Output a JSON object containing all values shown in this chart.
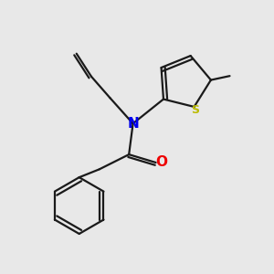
{
  "background_color": "#e8e8e8",
  "bond_color": "#1a1a1a",
  "N_color": "#0000ee",
  "O_color": "#ee0000",
  "S_color": "#bbbb00",
  "line_width": 1.6,
  "figsize": [
    3.0,
    3.0
  ],
  "dpi": 100,
  "xlim": [
    0,
    10
  ],
  "ylim": [
    0,
    10
  ]
}
